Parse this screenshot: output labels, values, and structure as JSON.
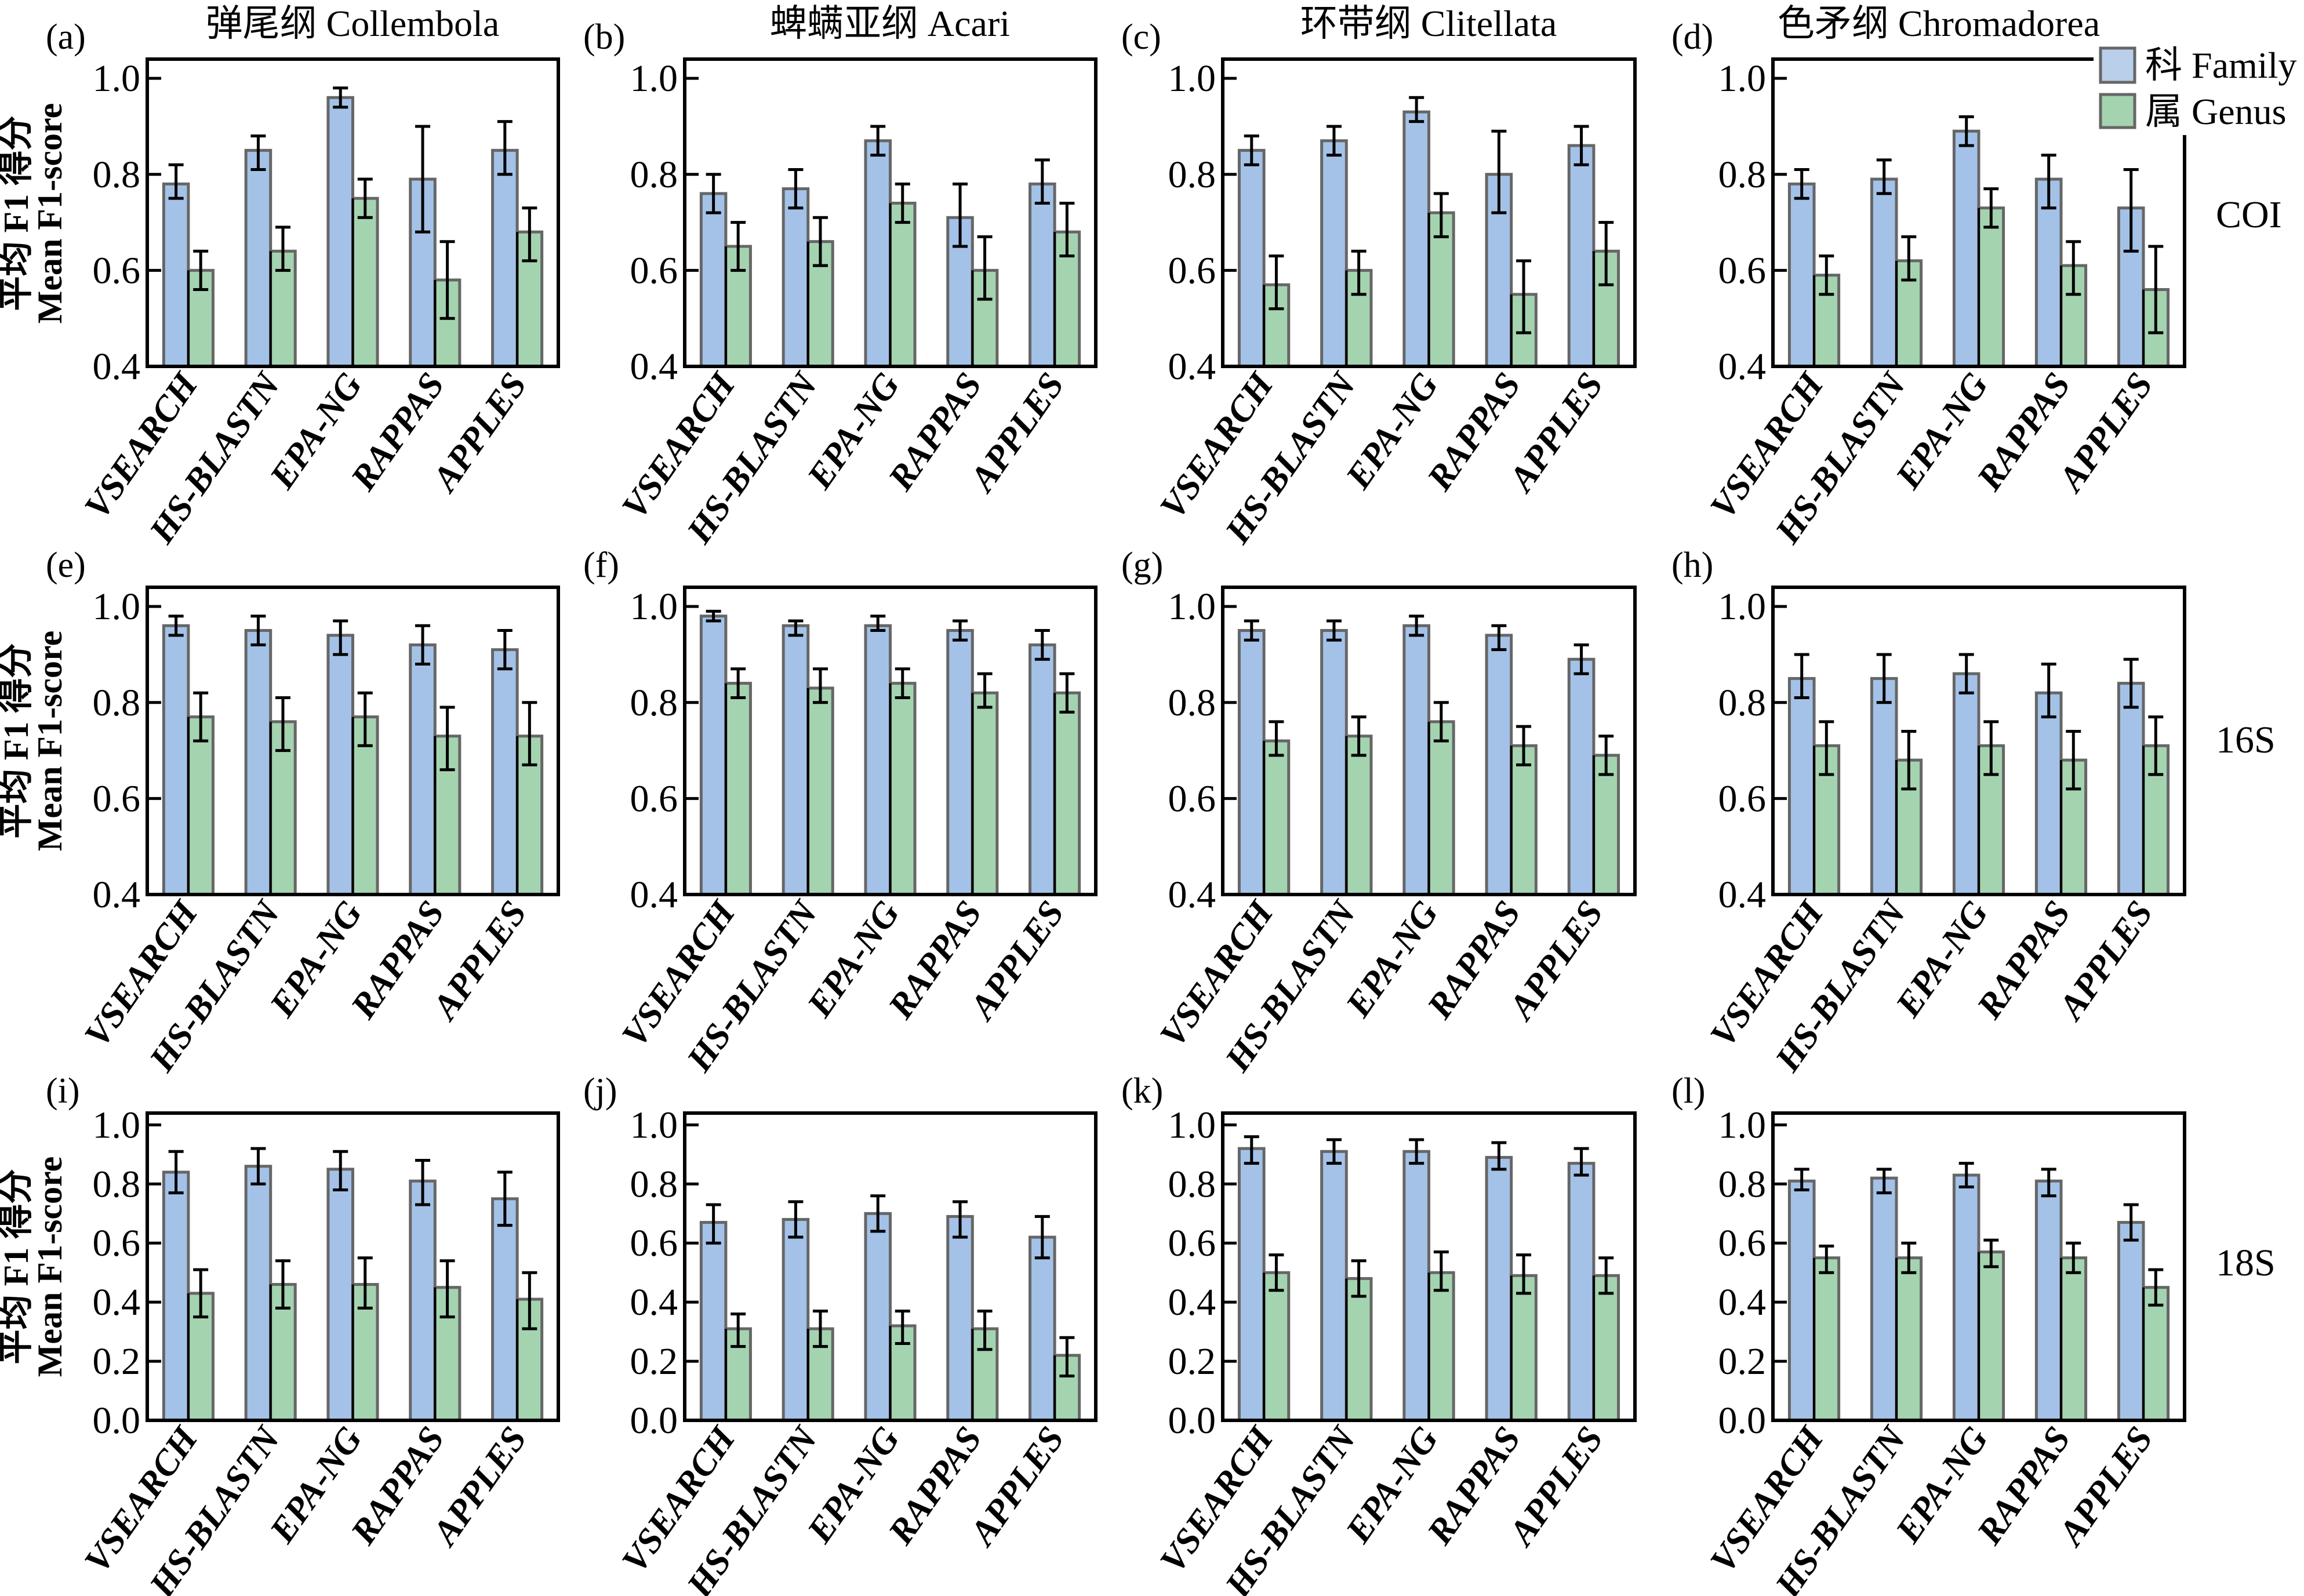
{
  "chart_data": {
    "type": "bar",
    "figure_layout": "3 rows x 4 columns of grouped bar charts with error bars",
    "categories": [
      "VSEARCH",
      "HS-BLASTN",
      "EPA-NG",
      "RAPPAS",
      "APPLES"
    ],
    "legend": {
      "placement": "top-right",
      "entries": [
        {
          "key": "family",
          "label": "科 Family",
          "color": "#a4c2e8"
        },
        {
          "key": "genus",
          "label": "属 Genus",
          "color": "#a4d3b0"
        }
      ]
    },
    "ylabel_zh": "平均 F1 得分",
    "ylabel_en": "Mean F1-score",
    "column_titles": [
      "弹尾纲 Collembola",
      "蜱螨亚纲 Acari",
      "环带纲 Clitellata",
      "色矛纲 Chromadorea"
    ],
    "row_labels": [
      "COI",
      "16S",
      "18S"
    ],
    "rows": [
      {
        "marker": "COI",
        "ylim": [
          0.4,
          1.04
        ],
        "yticks": [
          "0.4",
          "0.6",
          "0.8",
          "1.0"
        ]
      },
      {
        "marker": "16S",
        "ylim": [
          0.4,
          1.04
        ],
        "yticks": [
          "0.4",
          "0.6",
          "0.8",
          "1.0"
        ]
      },
      {
        "marker": "18S",
        "ylim": [
          0.0,
          1.04
        ],
        "yticks": [
          "0.0",
          "0.2",
          "0.4",
          "0.6",
          "0.8",
          "1.0"
        ]
      }
    ],
    "panels": [
      {
        "id": "(a)",
        "row": 0,
        "col": 0,
        "taxon": "Collembola",
        "marker": "COI",
        "series": [
          {
            "name": "Family",
            "values": [
              0.78,
              0.85,
              0.96,
              0.79,
              0.85
            ],
            "err_low": [
              0.75,
              0.81,
              0.94,
              0.68,
              0.8
            ],
            "err_high": [
              0.82,
              0.88,
              0.98,
              0.9,
              0.91
            ]
          },
          {
            "name": "Genus",
            "values": [
              0.6,
              0.64,
              0.75,
              0.58,
              0.68
            ],
            "err_low": [
              0.56,
              0.6,
              0.71,
              0.5,
              0.62
            ],
            "err_high": [
              0.64,
              0.69,
              0.79,
              0.66,
              0.73
            ]
          }
        ]
      },
      {
        "id": "(b)",
        "row": 0,
        "col": 1,
        "taxon": "Acari",
        "marker": "COI",
        "series": [
          {
            "name": "Family",
            "values": [
              0.76,
              0.77,
              0.87,
              0.71,
              0.78
            ],
            "err_low": [
              0.72,
              0.73,
              0.84,
              0.65,
              0.74
            ],
            "err_high": [
              0.8,
              0.81,
              0.9,
              0.78,
              0.83
            ]
          },
          {
            "name": "Genus",
            "values": [
              0.65,
              0.66,
              0.74,
              0.6,
              0.68
            ],
            "err_low": [
              0.6,
              0.61,
              0.7,
              0.54,
              0.63
            ],
            "err_high": [
              0.7,
              0.71,
              0.78,
              0.67,
              0.74
            ]
          }
        ]
      },
      {
        "id": "(c)",
        "row": 0,
        "col": 2,
        "taxon": "Clitellata",
        "marker": "COI",
        "series": [
          {
            "name": "Family",
            "values": [
              0.85,
              0.87,
              0.93,
              0.8,
              0.86
            ],
            "err_low": [
              0.82,
              0.84,
              0.91,
              0.72,
              0.82
            ],
            "err_high": [
              0.88,
              0.9,
              0.96,
              0.89,
              0.9
            ]
          },
          {
            "name": "Genus",
            "values": [
              0.57,
              0.6,
              0.72,
              0.55,
              0.64
            ],
            "err_low": [
              0.52,
              0.55,
              0.67,
              0.47,
              0.57
            ],
            "err_high": [
              0.63,
              0.64,
              0.76,
              0.62,
              0.7
            ]
          }
        ]
      },
      {
        "id": "(d)",
        "row": 0,
        "col": 3,
        "taxon": "Chromadorea",
        "marker": "COI",
        "series": [
          {
            "name": "Family",
            "values": [
              0.78,
              0.79,
              0.89,
              0.79,
              0.73
            ],
            "err_low": [
              0.75,
              0.76,
              0.86,
              0.73,
              0.64
            ],
            "err_high": [
              0.81,
              0.83,
              0.92,
              0.84,
              0.81
            ]
          },
          {
            "name": "Genus",
            "values": [
              0.59,
              0.62,
              0.73,
              0.61,
              0.56
            ],
            "err_low": [
              0.55,
              0.58,
              0.69,
              0.55,
              0.47
            ],
            "err_high": [
              0.63,
              0.67,
              0.77,
              0.66,
              0.65
            ]
          }
        ]
      },
      {
        "id": "(e)",
        "row": 1,
        "col": 0,
        "taxon": "Collembola",
        "marker": "16S",
        "series": [
          {
            "name": "Family",
            "values": [
              0.96,
              0.95,
              0.94,
              0.92,
              0.91
            ],
            "err_low": [
              0.94,
              0.92,
              0.9,
              0.88,
              0.87
            ],
            "err_high": [
              0.98,
              0.98,
              0.97,
              0.96,
              0.95
            ]
          },
          {
            "name": "Genus",
            "values": [
              0.77,
              0.76,
              0.77,
              0.73,
              0.73
            ],
            "err_low": [
              0.72,
              0.7,
              0.71,
              0.66,
              0.67
            ],
            "err_high": [
              0.82,
              0.81,
              0.82,
              0.79,
              0.8
            ]
          }
        ]
      },
      {
        "id": "(f)",
        "row": 1,
        "col": 1,
        "taxon": "Acari",
        "marker": "16S",
        "series": [
          {
            "name": "Family",
            "values": [
              0.98,
              0.96,
              0.96,
              0.95,
              0.92
            ],
            "err_low": [
              0.97,
              0.94,
              0.95,
              0.93,
              0.89
            ],
            "err_high": [
              0.99,
              0.97,
              0.98,
              0.97,
              0.95
            ]
          },
          {
            "name": "Genus",
            "values": [
              0.84,
              0.83,
              0.84,
              0.82,
              0.82
            ],
            "err_low": [
              0.81,
              0.8,
              0.81,
              0.79,
              0.78
            ],
            "err_high": [
              0.87,
              0.87,
              0.87,
              0.86,
              0.86
            ]
          }
        ]
      },
      {
        "id": "(g)",
        "row": 1,
        "col": 2,
        "taxon": "Clitellata",
        "marker": "16S",
        "series": [
          {
            "name": "Family",
            "values": [
              0.95,
              0.95,
              0.96,
              0.94,
              0.89
            ],
            "err_low": [
              0.93,
              0.93,
              0.94,
              0.91,
              0.86
            ],
            "err_high": [
              0.97,
              0.97,
              0.98,
              0.96,
              0.92
            ]
          },
          {
            "name": "Genus",
            "values": [
              0.72,
              0.73,
              0.76,
              0.71,
              0.69
            ],
            "err_low": [
              0.69,
              0.69,
              0.72,
              0.67,
              0.65
            ],
            "err_high": [
              0.76,
              0.77,
              0.8,
              0.75,
              0.73
            ]
          }
        ]
      },
      {
        "id": "(h)",
        "row": 1,
        "col": 3,
        "taxon": "Chromadorea",
        "marker": "16S",
        "series": [
          {
            "name": "Family",
            "values": [
              0.85,
              0.85,
              0.86,
              0.82,
              0.84
            ],
            "err_low": [
              0.81,
              0.8,
              0.82,
              0.77,
              0.79
            ],
            "err_high": [
              0.9,
              0.9,
              0.9,
              0.88,
              0.89
            ]
          },
          {
            "name": "Genus",
            "values": [
              0.71,
              0.68,
              0.71,
              0.68,
              0.71
            ],
            "err_low": [
              0.65,
              0.62,
              0.65,
              0.62,
              0.65
            ],
            "err_high": [
              0.76,
              0.74,
              0.76,
              0.74,
              0.77
            ]
          }
        ]
      },
      {
        "id": "(i)",
        "row": 2,
        "col": 0,
        "taxon": "Collembola",
        "marker": "18S",
        "series": [
          {
            "name": "Family",
            "values": [
              0.84,
              0.86,
              0.85,
              0.81,
              0.75
            ],
            "err_low": [
              0.77,
              0.8,
              0.78,
              0.73,
              0.66
            ],
            "err_high": [
              0.91,
              0.92,
              0.91,
              0.88,
              0.84
            ]
          },
          {
            "name": "Genus",
            "values": [
              0.43,
              0.46,
              0.46,
              0.45,
              0.41
            ],
            "err_low": [
              0.35,
              0.38,
              0.38,
              0.35,
              0.31
            ],
            "err_high": [
              0.51,
              0.54,
              0.55,
              0.54,
              0.5
            ]
          }
        ]
      },
      {
        "id": "(j)",
        "row": 2,
        "col": 1,
        "taxon": "Acari",
        "marker": "18S",
        "series": [
          {
            "name": "Family",
            "values": [
              0.67,
              0.68,
              0.7,
              0.69,
              0.62
            ],
            "err_low": [
              0.6,
              0.62,
              0.64,
              0.62,
              0.55
            ],
            "err_high": [
              0.73,
              0.74,
              0.76,
              0.74,
              0.69
            ]
          },
          {
            "name": "Genus",
            "values": [
              0.31,
              0.31,
              0.32,
              0.31,
              0.22
            ],
            "err_low": [
              0.25,
              0.25,
              0.26,
              0.24,
              0.15
            ],
            "err_high": [
              0.36,
              0.37,
              0.37,
              0.37,
              0.28
            ]
          }
        ]
      },
      {
        "id": "(k)",
        "row": 2,
        "col": 2,
        "taxon": "Clitellata",
        "marker": "18S",
        "series": [
          {
            "name": "Family",
            "values": [
              0.92,
              0.91,
              0.91,
              0.89,
              0.87
            ],
            "err_low": [
              0.87,
              0.87,
              0.87,
              0.85,
              0.83
            ],
            "err_high": [
              0.96,
              0.95,
              0.95,
              0.94,
              0.92
            ]
          },
          {
            "name": "Genus",
            "values": [
              0.5,
              0.48,
              0.5,
              0.49,
              0.49
            ],
            "err_low": [
              0.44,
              0.42,
              0.44,
              0.43,
              0.43
            ],
            "err_high": [
              0.56,
              0.54,
              0.57,
              0.56,
              0.55
            ]
          }
        ]
      },
      {
        "id": "(l)",
        "row": 2,
        "col": 3,
        "taxon": "Chromadorea",
        "marker": "18S",
        "series": [
          {
            "name": "Family",
            "values": [
              0.81,
              0.82,
              0.83,
              0.81,
              0.67
            ],
            "err_low": [
              0.78,
              0.77,
              0.79,
              0.76,
              0.61
            ],
            "err_high": [
              0.85,
              0.85,
              0.87,
              0.85,
              0.73
            ]
          },
          {
            "name": "Genus",
            "values": [
              0.55,
              0.55,
              0.57,
              0.55,
              0.45
            ],
            "err_low": [
              0.5,
              0.5,
              0.52,
              0.5,
              0.39
            ],
            "err_high": [
              0.59,
              0.6,
              0.61,
              0.6,
              0.51
            ]
          }
        ]
      }
    ]
  }
}
